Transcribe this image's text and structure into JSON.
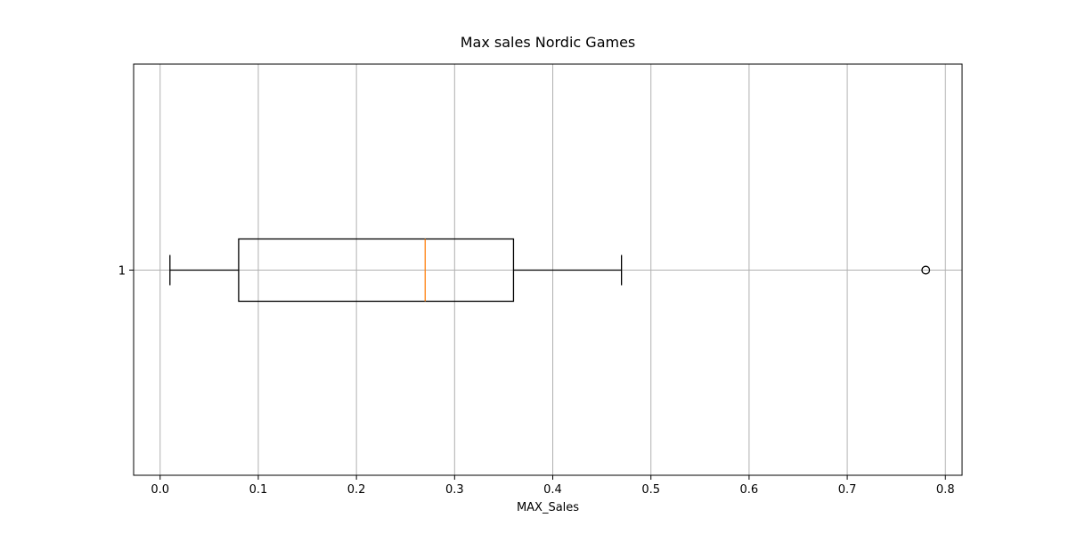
{
  "chart_data": {
    "type": "boxplot",
    "orientation": "horizontal",
    "title": "Max sales Nordic Games",
    "xlabel": "MAX_Sales",
    "ylabel": "",
    "xlim": [
      -0.027,
      0.817
    ],
    "x_ticks": [
      0.0,
      0.1,
      0.2,
      0.3,
      0.4,
      0.5,
      0.6,
      0.7,
      0.8
    ],
    "x_tick_labels": [
      "0.0",
      "0.1",
      "0.2",
      "0.3",
      "0.4",
      "0.5",
      "0.6",
      "0.7",
      "0.8"
    ],
    "y_tick_labels": [
      "1"
    ],
    "grid": true,
    "boxes": [
      {
        "position": 1,
        "whisker_low": 0.01,
        "q1": 0.08,
        "median": 0.27,
        "q3": 0.36,
        "whisker_high": 0.47,
        "outliers": [
          0.78
        ]
      }
    ],
    "colors": {
      "box": "#000000",
      "median": "#ff7f0e",
      "grid": "#b0b0b0",
      "axes": "#000000"
    }
  }
}
